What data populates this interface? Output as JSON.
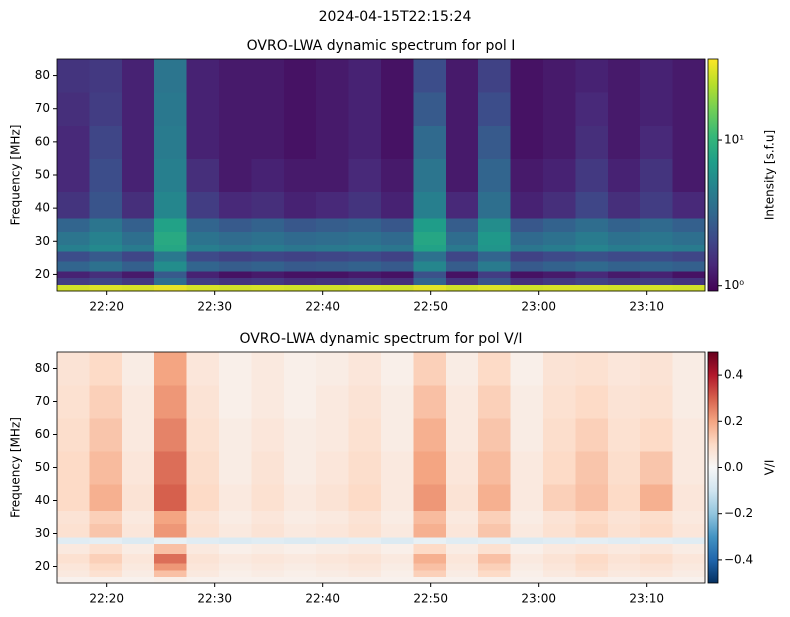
{
  "title": "2024-04-15T22:15:24",
  "chart_data": [
    {
      "type": "heatmap",
      "title": "OVRO-LWA dynamic spectrum for pol I",
      "ylabel": "Frequency [MHz]",
      "colormap": "viridis",
      "colorbar_label": "Intensity [s.f.u]",
      "colorbar_scale": "log",
      "clim": [
        0.92,
        36
      ],
      "cticks": [
        {
          "value": 1,
          "label": "10⁰"
        },
        {
          "value": 10,
          "label": "10¹"
        }
      ],
      "xlim": [
        1335.4,
        1395.4
      ],
      "ylim": [
        15,
        85
      ],
      "xticks": [
        {
          "value": 1340,
          "label": "22:20"
        },
        {
          "value": 1350,
          "label": "22:30"
        },
        {
          "value": 1360,
          "label": "22:40"
        },
        {
          "value": 1370,
          "label": "22:50"
        },
        {
          "value": 1380,
          "label": "23:00"
        },
        {
          "value": 1390,
          "label": "23:10"
        }
      ],
      "yticks": [
        20,
        30,
        40,
        50,
        60,
        70,
        80
      ],
      "x_edges": [
        1335.4,
        1338.4,
        1341.4,
        1344.4,
        1347.4,
        1350.4,
        1353.4,
        1356.4,
        1359.4,
        1362.4,
        1365.4,
        1368.4,
        1371.4,
        1374.4,
        1377.4,
        1380.4,
        1383.4,
        1386.4,
        1389.4,
        1392.4,
        1395.4
      ],
      "y_edges": [
        15,
        17,
        19,
        21,
        24,
        27,
        29,
        33,
        37,
        45,
        55,
        65,
        75,
        85
      ],
      "values": [
        [
          28,
          30,
          29,
          32,
          29,
          28,
          29,
          28,
          28,
          29,
          28,
          31,
          28,
          30,
          28,
          29,
          29,
          28,
          29,
          28
        ],
        [
          1.8,
          2.0,
          1.7,
          3.5,
          1.8,
          1.6,
          1.7,
          1.5,
          1.6,
          1.7,
          1.5,
          3.0,
          1.6,
          2.4,
          1.5,
          1.7,
          1.9,
          1.7,
          1.8,
          1.6
        ],
        [
          1.3,
          1.5,
          1.2,
          2.6,
          1.3,
          1.1,
          1.2,
          1.1,
          1.1,
          1.2,
          1.1,
          2.3,
          1.1,
          1.8,
          1.1,
          1.2,
          1.4,
          1.2,
          1.3,
          1.1
        ],
        [
          3.0,
          3.6,
          2.8,
          5.5,
          3.0,
          2.7,
          2.9,
          2.6,
          2.7,
          2.9,
          2.6,
          5.0,
          2.7,
          4.2,
          2.6,
          2.9,
          3.2,
          2.9,
          3.0,
          2.8
        ],
        [
          2.2,
          2.6,
          2.0,
          4.0,
          2.1,
          1.9,
          2.0,
          1.9,
          2.0,
          2.1,
          1.9,
          3.6,
          2.0,
          3.0,
          1.9,
          2.1,
          2.3,
          2.1,
          2.2,
          2.0
        ],
        [
          4.5,
          5.2,
          4.2,
          8.0,
          4.4,
          4.0,
          4.3,
          3.9,
          4.1,
          4.3,
          3.9,
          7.5,
          4.1,
          6.2,
          3.9,
          4.3,
          4.8,
          4.3,
          4.5,
          4.2
        ],
        [
          3.8,
          4.6,
          3.5,
          8.5,
          3.7,
          3.3,
          3.6,
          3.2,
          3.4,
          3.6,
          3.2,
          8.0,
          3.4,
          6.5,
          3.2,
          3.6,
          4.2,
          3.6,
          3.9,
          3.5
        ],
        [
          3.0,
          3.8,
          2.8,
          7.5,
          3.0,
          2.6,
          2.9,
          2.5,
          2.7,
          2.9,
          2.5,
          7.0,
          2.7,
          5.5,
          2.5,
          2.9,
          3.4,
          2.9,
          3.2,
          2.8
        ],
        [
          1.6,
          2.4,
          1.5,
          5.0,
          1.8,
          1.4,
          1.5,
          1.3,
          1.4,
          1.6,
          1.3,
          4.5,
          1.4,
          3.5,
          1.3,
          1.5,
          2.0,
          1.5,
          1.8,
          1.4
        ],
        [
          1.4,
          2.2,
          1.3,
          4.5,
          1.5,
          1.2,
          1.3,
          1.2,
          1.2,
          1.4,
          1.2,
          3.8,
          1.2,
          3.0,
          1.2,
          1.3,
          1.7,
          1.3,
          1.6,
          1.2
        ],
        [
          1.4,
          2.0,
          1.3,
          4.2,
          1.3,
          1.2,
          1.2,
          1.1,
          1.2,
          1.3,
          1.1,
          3.2,
          1.2,
          2.6,
          1.1,
          1.2,
          1.5,
          1.2,
          1.4,
          1.2
        ],
        [
          1.5,
          1.8,
          1.3,
          4.0,
          1.3,
          1.2,
          1.2,
          1.1,
          1.2,
          1.3,
          1.1,
          2.6,
          1.2,
          2.2,
          1.1,
          1.2,
          1.4,
          1.2,
          1.3,
          1.2
        ],
        [
          1.6,
          1.7,
          1.3,
          3.8,
          1.3,
          1.2,
          1.2,
          1.1,
          1.2,
          1.3,
          1.1,
          2.2,
          1.2,
          1.9,
          1.1,
          1.2,
          1.3,
          1.2,
          1.3,
          1.2
        ]
      ]
    },
    {
      "type": "heatmap",
      "title": "OVRO-LWA dynamic spectrum for pol V/I",
      "ylabel": "Frequency [MHz]",
      "colormap": "RdBu_r",
      "colorbar_label": "V/I",
      "colorbar_scale": "linear",
      "clim": [
        -0.5,
        0.5
      ],
      "cticks": [
        0.4,
        0.2,
        {
          "value": 0,
          "label": "0.0"
        },
        {
          "value": -0.2,
          "label": "−0.2"
        },
        {
          "value": -0.4,
          "label": "−0.4"
        }
      ],
      "xlim": [
        1335.4,
        1395.4
      ],
      "ylim": [
        15,
        85
      ],
      "xticks": [
        {
          "value": 1340,
          "label": "22:20"
        },
        {
          "value": 1350,
          "label": "22:30"
        },
        {
          "value": 1360,
          "label": "22:40"
        },
        {
          "value": 1370,
          "label": "22:50"
        },
        {
          "value": 1380,
          "label": "23:00"
        },
        {
          "value": 1390,
          "label": "23:10"
        }
      ],
      "yticks": [
        20,
        30,
        40,
        50,
        60,
        70,
        80
      ],
      "x_edges": [
        1335.4,
        1338.4,
        1341.4,
        1344.4,
        1347.4,
        1350.4,
        1353.4,
        1356.4,
        1359.4,
        1362.4,
        1365.4,
        1368.4,
        1371.4,
        1374.4,
        1377.4,
        1380.4,
        1383.4,
        1386.4,
        1389.4,
        1392.4,
        1395.4
      ],
      "y_edges": [
        15,
        17,
        19,
        21,
        24,
        27,
        29,
        33,
        37,
        45,
        55,
        65,
        75,
        85
      ],
      "values": [
        [
          0.02,
          0.02,
          0.02,
          0.03,
          0.02,
          0.02,
          0.02,
          0.02,
          0.02,
          0.02,
          0.02,
          0.02,
          0.02,
          0.02,
          0.02,
          0.02,
          0.02,
          0.02,
          0.02,
          0.02
        ],
        [
          0.05,
          0.08,
          0.04,
          0.15,
          0.05,
          0.03,
          0.04,
          0.03,
          0.04,
          0.05,
          0.03,
          0.12,
          0.04,
          0.1,
          0.03,
          0.05,
          0.07,
          0.05,
          0.06,
          0.04
        ],
        [
          0.06,
          0.1,
          0.05,
          0.22,
          0.06,
          0.04,
          0.05,
          0.04,
          0.05,
          0.06,
          0.04,
          0.15,
          0.05,
          0.12,
          0.04,
          0.06,
          0.09,
          0.06,
          0.07,
          0.05
        ],
        [
          0.08,
          0.12,
          0.06,
          0.28,
          0.07,
          0.05,
          0.06,
          0.05,
          0.06,
          0.07,
          0.05,
          0.18,
          0.06,
          0.15,
          0.05,
          0.07,
          0.1,
          0.07,
          0.09,
          0.06
        ],
        [
          0.05,
          0.08,
          0.04,
          0.15,
          0.05,
          0.03,
          0.04,
          0.03,
          0.04,
          0.05,
          0.03,
          0.1,
          0.04,
          0.08,
          0.03,
          0.05,
          0.06,
          0.05,
          0.06,
          0.04
        ],
        [
          -0.06,
          -0.05,
          -0.07,
          -0.04,
          -0.06,
          -0.07,
          -0.06,
          -0.07,
          -0.06,
          -0.05,
          -0.07,
          -0.04,
          -0.06,
          -0.05,
          -0.07,
          -0.06,
          -0.05,
          -0.06,
          -0.05,
          -0.06
        ],
        [
          0.08,
          0.14,
          0.06,
          0.22,
          0.08,
          0.05,
          0.07,
          0.05,
          0.06,
          0.08,
          0.05,
          0.18,
          0.06,
          0.14,
          0.05,
          0.08,
          0.11,
          0.08,
          0.1,
          0.06
        ],
        [
          0.07,
          0.12,
          0.05,
          0.2,
          0.07,
          0.04,
          0.06,
          0.04,
          0.05,
          0.07,
          0.04,
          0.16,
          0.05,
          0.12,
          0.04,
          0.07,
          0.1,
          0.07,
          0.09,
          0.05
        ],
        [
          0.1,
          0.18,
          0.07,
          0.3,
          0.1,
          0.05,
          0.08,
          0.05,
          0.07,
          0.1,
          0.05,
          0.22,
          0.07,
          0.18,
          0.05,
          0.12,
          0.15,
          0.1,
          0.18,
          0.06
        ],
        [
          0.1,
          0.16,
          0.06,
          0.28,
          0.09,
          0.04,
          0.07,
          0.04,
          0.06,
          0.09,
          0.05,
          0.2,
          0.06,
          0.16,
          0.05,
          0.1,
          0.14,
          0.09,
          0.14,
          0.05
        ],
        [
          0.09,
          0.14,
          0.05,
          0.25,
          0.08,
          0.04,
          0.06,
          0.04,
          0.05,
          0.08,
          0.04,
          0.18,
          0.05,
          0.14,
          0.04,
          0.09,
          0.12,
          0.08,
          0.1,
          0.05
        ],
        [
          0.08,
          0.12,
          0.05,
          0.22,
          0.07,
          0.03,
          0.05,
          0.03,
          0.05,
          0.07,
          0.04,
          0.15,
          0.05,
          0.12,
          0.04,
          0.08,
          0.1,
          0.07,
          0.08,
          0.04
        ],
        [
          0.07,
          0.1,
          0.04,
          0.2,
          0.06,
          0.03,
          0.05,
          0.03,
          0.04,
          0.06,
          0.03,
          0.12,
          0.04,
          0.1,
          0.03,
          0.07,
          0.08,
          0.06,
          0.07,
          0.04
        ]
      ]
    }
  ]
}
